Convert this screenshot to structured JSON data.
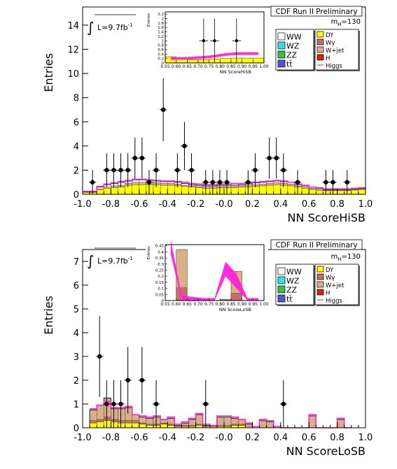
{
  "chart_data": [
    {
      "type": "histogram",
      "experiment": "CDF Run II Preliminary",
      "luminosity_label": "L=9.7fb",
      "luminosity_exp": "-1",
      "mass_label": "m",
      "mass_sub": "H",
      "mass_value": "=130",
      "xlabel": "NN ScoreHiSB",
      "ylabel": "Entries",
      "xlim": [
        -1.0,
        1.0
      ],
      "ylim": [
        0,
        15.5
      ],
      "xticks": [
        "-1.0",
        "-0.8",
        "-0.6",
        "-0.4",
        "-0.2",
        "-0.0",
        "0.2",
        "0.4",
        "0.6",
        "0.8",
        "1.0"
      ],
      "yticks": [
        "0",
        "2",
        "4",
        "6",
        "8",
        "10",
        "12",
        "14"
      ],
      "ytick_values": [
        0,
        2,
        4,
        6,
        8,
        10,
        12,
        14
      ],
      "legend_left": [
        "WW",
        "WZ",
        "ZZ",
        "tt̄"
      ],
      "legend_right": [
        "DY",
        "Wγ",
        "W+jet",
        "H",
        "Higgs"
      ],
      "colors": {
        "WW": "#ffffff",
        "WZ": "#33ddee",
        "ZZ": "#3cbf3c",
        "tt": "#5555cc",
        "DY": "#ffff00",
        "Wg": "#c96a6a",
        "Wjet": "#d8b088",
        "H": "#dd2200",
        "Higgs": "#ff22dd"
      },
      "bin_edges": [
        -1.0,
        -0.9,
        -0.85,
        -0.8,
        -0.75,
        -0.7,
        -0.65,
        -0.6,
        -0.55,
        -0.5,
        -0.45,
        -0.4,
        -0.35,
        -0.3,
        -0.25,
        -0.2,
        -0.15,
        -0.1,
        -0.05,
        0.0,
        0.05,
        0.1,
        0.15,
        0.2,
        0.25,
        0.3,
        0.35,
        0.4,
        0.45,
        0.5,
        0.55,
        0.6,
        0.65,
        0.7,
        0.75,
        0.8,
        0.85,
        0.9,
        0.95,
        1.0
      ],
      "stack": {
        "DY": [
          0.15,
          0.4,
          0.5,
          0.55,
          0.6,
          0.75,
          0.8,
          0.8,
          0.8,
          0.8,
          0.75,
          0.75,
          0.7,
          0.65,
          0.6,
          0.55,
          0.5,
          0.5,
          0.55,
          0.55,
          0.55,
          0.6,
          0.6,
          0.65,
          0.7,
          0.75,
          0.8,
          0.75,
          0.7,
          0.6,
          0.5,
          0.4,
          0.35,
          0.3,
          0.3,
          0.3,
          0.3,
          0.35,
          0.4
        ],
        "Wjet": [
          0.0,
          0.05,
          0.1,
          0.15,
          0.15,
          0.15,
          0.2,
          0.2,
          0.2,
          0.15,
          0.15,
          0.15,
          0.15,
          0.1,
          0.1,
          0.1,
          0.1,
          0.1,
          0.1,
          0.1,
          0.1,
          0.1,
          0.15,
          0.15,
          0.15,
          0.15,
          0.15,
          0.15,
          0.15,
          0.1,
          0.1,
          0.1,
          0.05,
          0.05,
          0.05,
          0.05,
          0.05,
          0.05,
          0.05
        ],
        "WW": [
          0.05,
          0.15,
          0.2,
          0.2,
          0.25,
          0.2,
          0.2,
          0.2,
          0.15,
          0.15,
          0.15,
          0.15,
          0.15,
          0.15,
          0.1,
          0.1,
          0.1,
          0.1,
          0.1,
          0.1,
          0.1,
          0.1,
          0.1,
          0.15,
          0.15,
          0.15,
          0.15,
          0.15,
          0.15,
          0.1,
          0.1,
          0.1,
          0.1,
          0.05,
          0.05,
          0.05,
          0.05,
          0.05,
          0.05
        ]
      },
      "higgs_curve": [
        0.25,
        0.65,
        0.85,
        0.95,
        1.05,
        1.15,
        1.25,
        1.25,
        1.2,
        1.15,
        1.1,
        1.1,
        1.05,
        1.0,
        0.9,
        0.85,
        0.8,
        0.8,
        0.85,
        0.85,
        0.9,
        0.9,
        0.95,
        1.0,
        1.05,
        1.1,
        1.15,
        1.1,
        1.0,
        0.85,
        0.75,
        0.6,
        0.55,
        0.45,
        0.45,
        0.45,
        0.45,
        0.5,
        0.55
      ],
      "data_points": [
        {
          "x": -0.93,
          "y": 1,
          "yerr": 1
        },
        {
          "x": -0.83,
          "y": 2,
          "yerr": 1.4
        },
        {
          "x": -0.78,
          "y": 2,
          "yerr": 1.4
        },
        {
          "x": -0.73,
          "y": 2,
          "yerr": 1.4
        },
        {
          "x": -0.68,
          "y": 2,
          "yerr": 1.4
        },
        {
          "x": -0.63,
          "y": 3,
          "yerr": 1.7
        },
        {
          "x": -0.58,
          "y": 3,
          "yerr": 1.7
        },
        {
          "x": -0.53,
          "y": 1,
          "yerr": 1
        },
        {
          "x": -0.48,
          "y": 2,
          "yerr": 1.4
        },
        {
          "x": -0.43,
          "y": 7,
          "yerr": 2.6
        },
        {
          "x": -0.33,
          "y": 2,
          "yerr": 1.4
        },
        {
          "x": -0.28,
          "y": 4,
          "yerr": 2
        },
        {
          "x": -0.23,
          "y": 2,
          "yerr": 1.4
        },
        {
          "x": -0.13,
          "y": 1,
          "yerr": 1
        },
        {
          "x": -0.08,
          "y": 1,
          "yerr": 1
        },
        {
          "x": -0.03,
          "y": 1,
          "yerr": 1
        },
        {
          "x": 0.02,
          "y": 1,
          "yerr": 1
        },
        {
          "x": 0.17,
          "y": 1,
          "yerr": 1
        },
        {
          "x": 0.22,
          "y": 2,
          "yerr": 1.4
        },
        {
          "x": 0.32,
          "y": 3,
          "yerr": 1.7
        },
        {
          "x": 0.37,
          "y": 3,
          "yerr": 1.7
        },
        {
          "x": 0.42,
          "y": 2,
          "yerr": 1.4
        },
        {
          "x": 0.52,
          "y": 1,
          "yerr": 1
        },
        {
          "x": 0.72,
          "y": 1,
          "yerr": 1
        },
        {
          "x": 0.77,
          "y": 1,
          "yerr": 1
        },
        {
          "x": 0.87,
          "y": 1,
          "yerr": 1
        }
      ],
      "inset": {
        "xlabel": "NN ScoreHiSB",
        "ylabel": "Entries",
        "xlim": [
          0.55,
          1.0
        ],
        "ylim": [
          0,
          2.3
        ],
        "xticks": [
          "0.55",
          "0.60",
          "0.65",
          "0.70",
          "0.75",
          "0.80",
          "0.85",
          "0.90",
          "0.95",
          "1.00"
        ],
        "yticks": [
          "0",
          "0.2",
          "0.4",
          "0.6",
          "0.8",
          "1",
          "1.2",
          "1.4",
          "1.6",
          "1.8",
          "2",
          "2.2"
        ],
        "ytick_values": [
          0,
          0.2,
          0.4,
          0.6,
          0.8,
          1.0,
          1.2,
          1.4,
          1.6,
          1.8,
          2.0,
          2.2
        ],
        "bin_edges": [
          0.55,
          0.6,
          0.65,
          0.7,
          0.75,
          0.8,
          0.85,
          0.9,
          0.95,
          1.0
        ],
        "stack_total": [
          0.28,
          0.2,
          0.15,
          0.15,
          0.18,
          0.2,
          0.22,
          0.22,
          0.22
        ],
        "higgs_curve": [
          0.2,
          0.2,
          0.22,
          0.25,
          0.3,
          0.38,
          0.42,
          0.42,
          0.42
        ],
        "data_points": [
          {
            "x": 0.725,
            "y": 1,
            "yerr": 1
          },
          {
            "x": 0.775,
            "y": 1,
            "yerr": 1
          },
          {
            "x": 0.875,
            "y": 1,
            "yerr": 1
          }
        ]
      }
    },
    {
      "type": "histogram",
      "experiment": "CDF Run II Preliminary",
      "luminosity_label": "L=9.7fb",
      "luminosity_exp": "-1",
      "mass_label": "m",
      "mass_sub": "H",
      "mass_value": "=130",
      "xlabel": "NN ScoreLoSB",
      "ylabel": "Entries",
      "xlim": [
        -1.0,
        1.0
      ],
      "ylim": [
        0,
        7.5
      ],
      "xticks": [
        "-1.0",
        "-0.8",
        "-0.6",
        "-0.4",
        "-0.2",
        "-0.0",
        "0.2",
        "0.4",
        "0.6",
        "0.8",
        "1.0"
      ],
      "yticks": [
        "0",
        "1",
        "2",
        "3",
        "4",
        "5",
        "6",
        "7"
      ],
      "ytick_values": [
        0,
        1,
        2,
        3,
        4,
        5,
        6,
        7
      ],
      "legend_left": [
        "WW",
        "WZ",
        "ZZ",
        "tt̄"
      ],
      "legend_right": [
        "DY",
        "Wγ",
        "W+jet",
        "H",
        "Higgs"
      ],
      "colors": {
        "WW": "#ffffff",
        "WZ": "#33ddee",
        "ZZ": "#3cbf3c",
        "tt": "#5555cc",
        "DY": "#ffff00",
        "Wg": "#c96a6a",
        "Wjet": "#d8b088",
        "H": "#dd2200",
        "Higgs": "#ff22dd"
      },
      "bin_edges": [
        -0.95,
        -0.9,
        -0.85,
        -0.8,
        -0.75,
        -0.7,
        -0.65,
        -0.6,
        -0.55,
        -0.5,
        -0.45,
        -0.4,
        -0.35,
        -0.3,
        -0.25,
        -0.2,
        -0.15,
        -0.1,
        -0.05,
        0.0,
        0.05,
        0.1,
        0.15,
        0.2,
        0.25,
        0.3,
        0.35,
        0.4,
        0.45,
        0.5,
        0.55,
        0.6,
        0.65,
        0.7,
        0.75,
        0.8,
        0.85,
        0.9
      ],
      "stack": {
        "DY": [
          0.2,
          0.25,
          0.3,
          0.25,
          0.2,
          0.2,
          0.2,
          0.15,
          0.1,
          0.1,
          0.15,
          0.1,
          0.05,
          0.05,
          0.05,
          0.1,
          0.05,
          0.05,
          0.05,
          0.05,
          0.1,
          0.1,
          0.05,
          0.0,
          0.0,
          0.0,
          0.0,
          0.0,
          0.0,
          0.0,
          0.0,
          0.0,
          0.0,
          0.0,
          0.0,
          0.0,
          0.0
        ],
        "Wg": [
          0.1,
          0.1,
          0.15,
          0.1,
          0.1,
          0.1,
          0.1,
          0.05,
          0.05,
          0.05,
          0.05,
          0.05,
          0.05,
          0.05,
          0.05,
          0.05,
          0.05,
          0.05,
          0.05,
          0.05,
          0.05,
          0.05,
          0.0,
          0.0,
          0.0,
          0.0,
          0.0,
          0.0,
          0.0,
          0.0,
          0.0,
          0.0,
          0.0,
          0.0,
          0.0,
          0.0,
          0.0
        ],
        "Wjet": [
          0.45,
          0.6,
          0.8,
          0.45,
          0.5,
          0.55,
          0.25,
          0.25,
          0.25,
          0.3,
          0.15,
          0.25,
          0.0,
          0.1,
          0.25,
          0.4,
          0.0,
          0.0,
          0.35,
          0.35,
          0.25,
          0.2,
          0.1,
          0.0,
          0.3,
          0.25,
          0.0,
          0.0,
          0.0,
          0.0,
          0.0,
          0.5,
          0.0,
          0.0,
          0.0,
          0.35,
          0.0
        ]
      },
      "higgs_curve": [
        0.8,
        0.95,
        1.1,
        0.85,
        0.85,
        0.9,
        0.55,
        0.5,
        0.45,
        0.5,
        0.35,
        0.45,
        0.15,
        0.25,
        0.4,
        0.6,
        0.15,
        0.1,
        0.5,
        0.5,
        0.45,
        0.35,
        0.2,
        0.05,
        0.35,
        0.3,
        0.05,
        0.0,
        0.0,
        0.0,
        0.0,
        0.55,
        0.0,
        0.0,
        0.0,
        0.4,
        0.0
      ],
      "data_points": [
        {
          "x": -0.88,
          "y": 3,
          "yerr": 1.7
        },
        {
          "x": -0.83,
          "y": 1,
          "yerr": 1
        },
        {
          "x": -0.78,
          "y": 1,
          "yerr": 1
        },
        {
          "x": -0.73,
          "y": 1,
          "yerr": 1
        },
        {
          "x": -0.68,
          "y": 2,
          "yerr": 1.4
        },
        {
          "x": -0.58,
          "y": 2,
          "yerr": 1.4
        },
        {
          "x": -0.48,
          "y": 1,
          "yerr": 1
        },
        {
          "x": -0.13,
          "y": 1,
          "yerr": 1
        },
        {
          "x": 0.42,
          "y": 1,
          "yerr": 1
        }
      ],
      "inset": {
        "xlabel": "NN ScoreLoSB",
        "ylabel": "Entries",
        "xlim": [
          0.55,
          1.0
        ],
        "ylim": [
          0,
          0.46
        ],
        "xticks": [
          "0.55",
          "0.60",
          "0.65",
          "0.70",
          "0.75",
          "0.80",
          "0.85",
          "0.90",
          "0.95",
          "1.00"
        ],
        "yticks": [
          "0",
          "0.05",
          "0.1",
          "0.15",
          "0.2",
          "0.25",
          "0.3",
          "0.35",
          "0.4",
          "0.45"
        ],
        "ytick_values": [
          0,
          0.05,
          0.1,
          0.15,
          0.2,
          0.25,
          0.3,
          0.35,
          0.4,
          0.45
        ],
        "bin_edges": [
          0.55,
          0.6,
          0.65,
          0.7,
          0.75,
          0.8,
          0.85,
          0.9,
          0.95,
          1.0
        ],
        "stack_total": [
          0.0,
          0.42,
          0.01,
          0.0,
          0.0,
          0.01,
          0.24,
          0.0,
          0.0
        ],
        "higgs_curve": [
          0.48,
          0.02,
          0.01,
          0.0,
          0.0,
          0.3,
          0.2,
          0.0,
          0.0
        ],
        "data_points": []
      }
    }
  ]
}
